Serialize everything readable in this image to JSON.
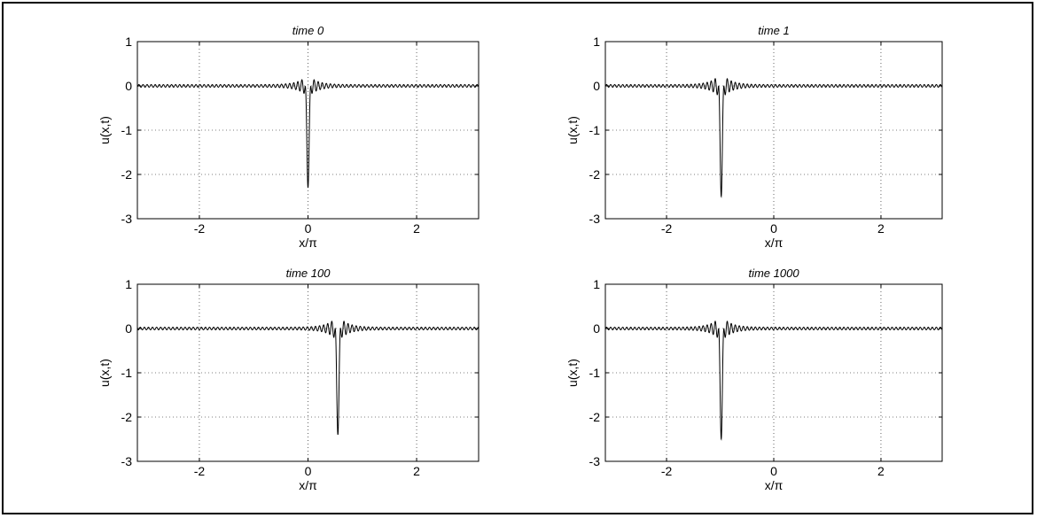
{
  "chart_data": [
    {
      "type": "line",
      "title": "time 0",
      "xlabel": "x/π",
      "ylabel": "u(x,t)",
      "xlim": [
        -3.14159,
        3.14159
      ],
      "ylim": [
        -3,
        1
      ],
      "xticks": [
        -2,
        0,
        2
      ],
      "yticks": [
        -3,
        -2,
        -1,
        0,
        1
      ],
      "xtick_labels": [
        "-2",
        "0",
        "2"
      ],
      "ytick_labels": [
        "-3",
        "-2",
        "-1",
        "0",
        "1"
      ],
      "grid": true,
      "color": "#000000",
      "series": [
        {
          "name": "",
          "peak_x": 0.0,
          "peak_min": -2.3,
          "side_max": 0.25,
          "tail_amplitude": 0.03,
          "osc_period": 0.075
        }
      ]
    },
    {
      "type": "line",
      "title": "time 1",
      "xlabel": "x/π",
      "ylabel": "u(x,t)",
      "xlim": [
        -3.14159,
        3.14159
      ],
      "ylim": [
        -3,
        1
      ],
      "xticks": [
        -2,
        0,
        2
      ],
      "yticks": [
        -3,
        -2,
        -1,
        0,
        1
      ],
      "xtick_labels": [
        "-2",
        "0",
        "2"
      ],
      "ytick_labels": [
        "-3",
        "-2",
        "-1",
        "0",
        "1"
      ],
      "grid": true,
      "color": "#000000",
      "series": [
        {
          "name": "",
          "peak_x": -0.98,
          "peak_min": -2.5,
          "side_max": 0.3,
          "tail_amplitude": 0.03,
          "osc_period": 0.075
        }
      ]
    },
    {
      "type": "line",
      "title": "time 100",
      "xlabel": "x/π",
      "ylabel": "u(x,t)",
      "xlim": [
        -3.14159,
        3.14159
      ],
      "ylim": [
        -3,
        1
      ],
      "xticks": [
        -2,
        0,
        2
      ],
      "yticks": [
        -3,
        -2,
        -1,
        0,
        1
      ],
      "xtick_labels": [
        "-2",
        "0",
        "2"
      ],
      "ytick_labels": [
        "-3",
        "-2",
        "-1",
        "0",
        "1"
      ],
      "grid": true,
      "color": "#000000",
      "series": [
        {
          "name": "",
          "peak_x": 0.55,
          "peak_min": -2.4,
          "side_max": 0.3,
          "tail_amplitude": 0.03,
          "osc_period": 0.075
        }
      ]
    },
    {
      "type": "line",
      "title": "time 1000",
      "xlabel": "x/π",
      "ylabel": "u(x,t)",
      "xlim": [
        -3.14159,
        3.14159
      ],
      "ylim": [
        -3,
        1
      ],
      "xticks": [
        -2,
        0,
        2
      ],
      "yticks": [
        -3,
        -2,
        -1,
        0,
        1
      ],
      "xtick_labels": [
        "-2",
        "0",
        "2"
      ],
      "ytick_labels": [
        "-3",
        "-2",
        "-1",
        "0",
        "1"
      ],
      "grid": true,
      "color": "#000000",
      "series": [
        {
          "name": "",
          "peak_x": -0.98,
          "peak_min": -2.5,
          "side_max": 0.3,
          "tail_amplitude": 0.03,
          "osc_period": 0.075
        }
      ]
    }
  ]
}
